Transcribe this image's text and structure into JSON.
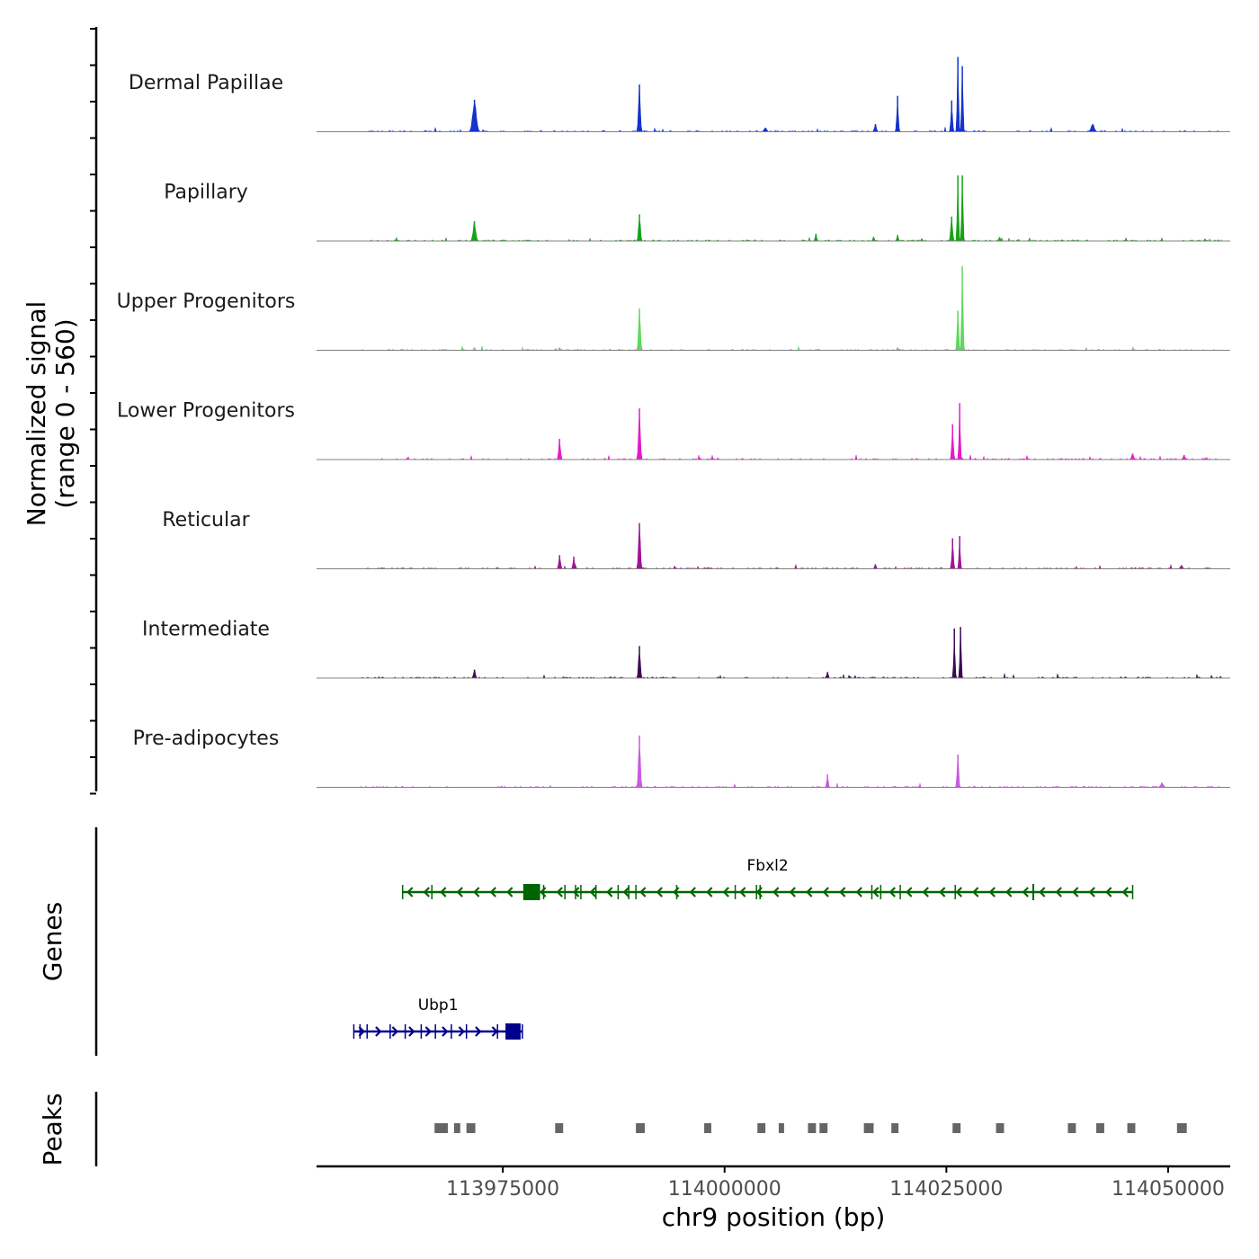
{
  "chart_data": {
    "type": "area",
    "title": "",
    "ylabel": [
      "Normalized signal",
      "(range 0 - 560)"
    ],
    "xlabel": "chr9 position (bp)",
    "ylim": [
      0,
      560
    ],
    "xlim": [
      113954000,
      114057000
    ],
    "x_ticks": [
      113975000,
      114000000,
      114025000,
      114050000
    ],
    "x_tick_labels": [
      "113975000",
      "114000000",
      "114025000",
      "114050000"
    ],
    "signal_extent": [
      113959000,
      114056000
    ],
    "tracks": [
      {
        "name": "Dermal Papillae",
        "color": "#1533cc",
        "peaks": [
          {
            "pos": 113971800,
            "height": 210,
            "width": 700
          },
          {
            "pos": 113990400,
            "height": 310,
            "width": 350
          },
          {
            "pos": 114004600,
            "height": 26,
            "width": 500
          },
          {
            "pos": 114017000,
            "height": 50,
            "width": 400
          },
          {
            "pos": 114019500,
            "height": 235,
            "width": 300
          },
          {
            "pos": 114025600,
            "height": 205,
            "width": 300
          },
          {
            "pos": 114026300,
            "height": 490,
            "width": 260
          },
          {
            "pos": 114026800,
            "height": 430,
            "width": 260
          },
          {
            "pos": 114041500,
            "height": 50,
            "width": 600
          }
        ]
      },
      {
        "name": "Papillary",
        "color": "#17a317",
        "peaks": [
          {
            "pos": 113971800,
            "height": 130,
            "width": 500
          },
          {
            "pos": 113990400,
            "height": 175,
            "width": 350
          },
          {
            "pos": 114010300,
            "height": 48,
            "width": 300
          },
          {
            "pos": 114016800,
            "height": 28,
            "width": 300
          },
          {
            "pos": 114019500,
            "height": 40,
            "width": 300
          },
          {
            "pos": 114025600,
            "height": 160,
            "width": 350
          },
          {
            "pos": 114026300,
            "height": 430,
            "width": 260
          },
          {
            "pos": 114026800,
            "height": 430,
            "width": 260
          },
          {
            "pos": 114031000,
            "height": 26,
            "width": 300
          }
        ]
      },
      {
        "name": "Upper Progenitors",
        "color": "#5fd85f",
        "peaks": [
          {
            "pos": 113971800,
            "height": 18,
            "width": 300
          },
          {
            "pos": 113981400,
            "height": 18,
            "width": 300
          },
          {
            "pos": 113990400,
            "height": 275,
            "width": 350
          },
          {
            "pos": 114019500,
            "height": 18,
            "width": 300
          },
          {
            "pos": 114026300,
            "height": 260,
            "width": 300
          },
          {
            "pos": 114026800,
            "height": 550,
            "width": 260
          }
        ]
      },
      {
        "name": "Lower Progenitors",
        "color": "#e31bcc",
        "peaks": [
          {
            "pos": 113981400,
            "height": 135,
            "width": 350
          },
          {
            "pos": 113990400,
            "height": 335,
            "width": 350
          },
          {
            "pos": 114025700,
            "height": 230,
            "width": 300
          },
          {
            "pos": 114026500,
            "height": 370,
            "width": 260
          },
          {
            "pos": 114046000,
            "height": 40,
            "width": 400
          },
          {
            "pos": 114051800,
            "height": 30,
            "width": 400
          }
        ]
      },
      {
        "name": "Reticular",
        "color": "#a3129a",
        "peaks": [
          {
            "pos": 113981400,
            "height": 90,
            "width": 350
          },
          {
            "pos": 113983000,
            "height": 80,
            "width": 300
          },
          {
            "pos": 113990400,
            "height": 300,
            "width": 350
          },
          {
            "pos": 114025700,
            "height": 200,
            "width": 300
          },
          {
            "pos": 114026500,
            "height": 215,
            "width": 260
          },
          {
            "pos": 114017000,
            "height": 30,
            "width": 300
          },
          {
            "pos": 114051500,
            "height": 24,
            "width": 400
          }
        ]
      },
      {
        "name": "Intermediate",
        "color": "#3d0a56",
        "peaks": [
          {
            "pos": 113971800,
            "height": 55,
            "width": 350
          },
          {
            "pos": 113990400,
            "height": 210,
            "width": 350
          },
          {
            "pos": 114011600,
            "height": 40,
            "width": 300
          },
          {
            "pos": 114025900,
            "height": 325,
            "width": 260
          },
          {
            "pos": 114026600,
            "height": 335,
            "width": 260
          }
        ]
      },
      {
        "name": "Pre-adipocytes",
        "color": "#c85ae0",
        "peaks": [
          {
            "pos": 113990400,
            "height": 340,
            "width": 350
          },
          {
            "pos": 114011600,
            "height": 85,
            "width": 300
          },
          {
            "pos": 114026300,
            "height": 215,
            "width": 300
          },
          {
            "pos": 114049300,
            "height": 30,
            "width": 500
          }
        ]
      }
    ],
    "genes_label": "Genes",
    "genes": [
      {
        "name": "Fbxl2",
        "color": "#006400",
        "strand": "-",
        "start": 113963700,
        "end": 114046000,
        "row": 0,
        "exons": [
          [
            113977300,
            113979200
          ],
          [
            114034700,
            114034900
          ]
        ],
        "exon_ticks": [
          113967000,
          113979600,
          113982000,
          113983200,
          113983800,
          113985500,
          113988000,
          113989200,
          113990000,
          113994600,
          114001200,
          114003600,
          114004000,
          114016600,
          114017600,
          114019800,
          114026000
        ]
      },
      {
        "name": "Ubp1",
        "color": "#00008b",
        "strand": "+",
        "start": 113958200,
        "end": 113977200,
        "row": 1,
        "exons": [
          [
            113975300,
            113977000
          ]
        ],
        "exon_ticks": [
          113958900,
          113959700,
          113962300,
          113964000,
          113965800,
          113967400,
          113969200,
          113970900,
          113974400
        ]
      }
    ],
    "peaks_label": "Peaks",
    "peak_regions": [
      [
        113967300,
        113968800
      ],
      [
        113969500,
        113970200
      ],
      [
        113970900,
        113971900
      ],
      [
        113980900,
        113981800
      ],
      [
        113990000,
        113991000
      ],
      [
        113997700,
        113998500
      ],
      [
        114003700,
        114004600
      ],
      [
        114006100,
        114006700
      ],
      [
        114009400,
        114010300
      ],
      [
        114010700,
        114011600
      ],
      [
        114015700,
        114016800
      ],
      [
        114018800,
        114019600
      ],
      [
        114025700,
        114026600
      ],
      [
        114030600,
        114031500
      ],
      [
        114038700,
        114039600
      ],
      [
        114041900,
        114042800
      ],
      [
        114045400,
        114046300
      ],
      [
        114051000,
        114052100
      ]
    ]
  }
}
